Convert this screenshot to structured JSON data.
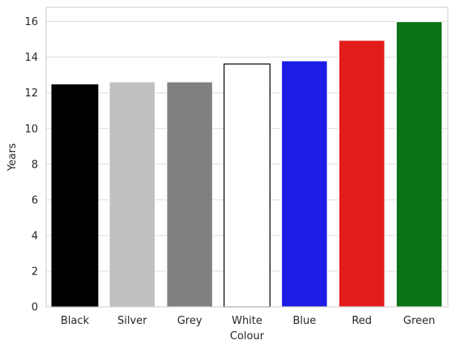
{
  "chart_data": {
    "type": "bar",
    "categories": [
      "Black",
      "Silver",
      "Grey",
      "White",
      "Blue",
      "Red",
      "Green"
    ],
    "values": [
      12.45,
      12.62,
      12.62,
      13.62,
      13.8,
      14.95,
      16.0
    ],
    "colors": [
      "#000000",
      "#c0c0c0",
      "#808080",
      "#ffffff",
      "#1c1ce6",
      "#e31c1c",
      "#0a7315"
    ],
    "bar_edge_colors": [
      "#000000",
      "#ffffff",
      "#ffffff",
      "#000000",
      "#ffffff",
      "#ffffff",
      "#ffffff"
    ],
    "xlabel": "Colour",
    "ylabel": "Years",
    "ylim": [
      0,
      16.8
    ],
    "yticks": [
      0,
      2,
      4,
      6,
      8,
      10,
      12,
      14,
      16
    ],
    "grid": true,
    "style": "seaborn whitegrid"
  }
}
